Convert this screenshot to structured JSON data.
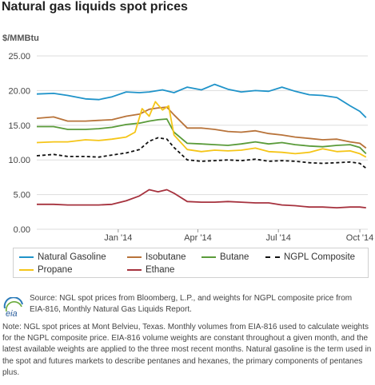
{
  "title": "Natural gas liquids spot prices",
  "unit_label": "$/MMBtu",
  "chart_data": {
    "type": "line",
    "title": "Natural gas liquids spot prices",
    "ylabel": "$/MMBtu",
    "ylim": [
      0,
      25
    ],
    "yticks": [
      "0.00",
      "5.00",
      "10.00",
      "15.00",
      "20.00",
      "25.00"
    ],
    "xlim": [
      "2013-10-01",
      "2014-10-10"
    ],
    "xticks": [
      {
        "date": "2014-01-01",
        "label": "Jan '14"
      },
      {
        "date": "2014-04-01",
        "label": "Apr '14"
      },
      {
        "date": "2014-07-01",
        "label": "Jul '14"
      },
      {
        "date": "2014-10-01",
        "label": "Oct '14"
      }
    ],
    "grid": true,
    "legend_position": "bottom",
    "series": [
      {
        "name": "Natural Gasoline",
        "color": "#1f93c9",
        "dash": false,
        "points": [
          [
            "2013-10-01",
            19.5
          ],
          [
            "2013-10-20",
            19.6
          ],
          [
            "2013-11-05",
            19.3
          ],
          [
            "2013-11-25",
            18.8
          ],
          [
            "2013-12-10",
            18.7
          ],
          [
            "2013-12-25",
            19.1
          ],
          [
            "2014-01-10",
            19.8
          ],
          [
            "2014-01-25",
            19.7
          ],
          [
            "2014-02-05",
            19.8
          ],
          [
            "2014-02-20",
            20.1
          ],
          [
            "2014-03-05",
            19.7
          ],
          [
            "2014-03-20",
            20.5
          ],
          [
            "2014-04-05",
            20.1
          ],
          [
            "2014-04-20",
            20.9
          ],
          [
            "2014-05-05",
            20.2
          ],
          [
            "2014-05-20",
            19.8
          ],
          [
            "2014-06-05",
            20.0
          ],
          [
            "2014-06-20",
            19.9
          ],
          [
            "2014-07-05",
            20.5
          ],
          [
            "2014-07-20",
            19.9
          ],
          [
            "2014-08-05",
            19.4
          ],
          [
            "2014-08-20",
            19.3
          ],
          [
            "2014-09-05",
            19.0
          ],
          [
            "2014-09-20",
            17.8
          ],
          [
            "2014-10-01",
            17.0
          ],
          [
            "2014-10-08",
            16.1
          ]
        ]
      },
      {
        "name": "Isobutane",
        "color": "#b8733a",
        "dash": false,
        "points": [
          [
            "2013-10-01",
            16.0
          ],
          [
            "2013-10-20",
            16.2
          ],
          [
            "2013-11-05",
            15.6
          ],
          [
            "2013-11-25",
            15.6
          ],
          [
            "2013-12-10",
            15.7
          ],
          [
            "2013-12-25",
            15.8
          ],
          [
            "2014-01-10",
            16.3
          ],
          [
            "2014-01-25",
            16.6
          ],
          [
            "2014-02-05",
            17.3
          ],
          [
            "2014-02-15",
            17.5
          ],
          [
            "2014-02-25",
            17.6
          ],
          [
            "2014-03-05",
            16.5
          ],
          [
            "2014-03-20",
            14.6
          ],
          [
            "2014-04-05",
            14.6
          ],
          [
            "2014-04-20",
            14.4
          ],
          [
            "2014-05-05",
            14.1
          ],
          [
            "2014-05-20",
            14.0
          ],
          [
            "2014-06-05",
            14.2
          ],
          [
            "2014-06-20",
            13.8
          ],
          [
            "2014-07-05",
            13.6
          ],
          [
            "2014-07-20",
            13.3
          ],
          [
            "2014-08-05",
            13.1
          ],
          [
            "2014-08-20",
            12.9
          ],
          [
            "2014-09-05",
            13.0
          ],
          [
            "2014-09-20",
            12.6
          ],
          [
            "2014-10-01",
            12.4
          ],
          [
            "2014-10-08",
            11.7
          ]
        ]
      },
      {
        "name": "Butane",
        "color": "#5a9b3a",
        "dash": false,
        "points": [
          [
            "2013-10-01",
            14.8
          ],
          [
            "2013-10-20",
            14.8
          ],
          [
            "2013-11-05",
            14.4
          ],
          [
            "2013-11-25",
            14.4
          ],
          [
            "2013-12-10",
            14.5
          ],
          [
            "2013-12-25",
            14.7
          ],
          [
            "2014-01-10",
            15.1
          ],
          [
            "2014-01-25",
            15.3
          ],
          [
            "2014-02-05",
            15.6
          ],
          [
            "2014-02-15",
            15.8
          ],
          [
            "2014-02-25",
            15.9
          ],
          [
            "2014-03-05",
            14.0
          ],
          [
            "2014-03-20",
            12.4
          ],
          [
            "2014-04-05",
            12.3
          ],
          [
            "2014-04-20",
            12.2
          ],
          [
            "2014-05-05",
            12.1
          ],
          [
            "2014-05-20",
            12.3
          ],
          [
            "2014-06-05",
            12.6
          ],
          [
            "2014-06-20",
            12.3
          ],
          [
            "2014-07-05",
            12.5
          ],
          [
            "2014-07-20",
            12.2
          ],
          [
            "2014-08-05",
            12.0
          ],
          [
            "2014-08-20",
            11.9
          ],
          [
            "2014-09-05",
            12.1
          ],
          [
            "2014-09-20",
            12.2
          ],
          [
            "2014-10-01",
            11.8
          ],
          [
            "2014-10-08",
            10.9
          ]
        ]
      },
      {
        "name": "NGPL Composite",
        "color": "#111111",
        "dash": true,
        "points": [
          [
            "2013-10-01",
            10.6
          ],
          [
            "2013-10-20",
            10.8
          ],
          [
            "2013-11-05",
            10.5
          ],
          [
            "2013-11-25",
            10.5
          ],
          [
            "2013-12-10",
            10.4
          ],
          [
            "2013-12-25",
            10.7
          ],
          [
            "2014-01-10",
            11.0
          ],
          [
            "2014-01-25",
            11.5
          ],
          [
            "2014-02-05",
            12.7
          ],
          [
            "2014-02-15",
            13.2
          ],
          [
            "2014-02-25",
            13.0
          ],
          [
            "2014-03-05",
            11.8
          ],
          [
            "2014-03-20",
            10.0
          ],
          [
            "2014-04-05",
            9.8
          ],
          [
            "2014-04-20",
            9.9
          ],
          [
            "2014-05-05",
            10.0
          ],
          [
            "2014-05-20",
            9.9
          ],
          [
            "2014-06-05",
            10.1
          ],
          [
            "2014-06-20",
            9.8
          ],
          [
            "2014-07-05",
            9.9
          ],
          [
            "2014-07-20",
            9.8
          ],
          [
            "2014-08-05",
            9.6
          ],
          [
            "2014-08-20",
            9.5
          ],
          [
            "2014-09-05",
            9.6
          ],
          [
            "2014-09-20",
            9.7
          ],
          [
            "2014-10-01",
            9.5
          ],
          [
            "2014-10-08",
            8.8
          ]
        ]
      },
      {
        "name": "Propane",
        "color": "#f5c518",
        "dash": false,
        "points": [
          [
            "2013-10-01",
            12.5
          ],
          [
            "2013-10-20",
            12.6
          ],
          [
            "2013-11-05",
            12.6
          ],
          [
            "2013-11-25",
            12.9
          ],
          [
            "2013-12-10",
            12.8
          ],
          [
            "2013-12-25",
            13.0
          ],
          [
            "2014-01-10",
            13.3
          ],
          [
            "2014-01-20",
            14.0
          ],
          [
            "2014-01-28",
            17.4
          ],
          [
            "2014-02-05",
            16.3
          ],
          [
            "2014-02-12",
            18.4
          ],
          [
            "2014-02-20",
            17.2
          ],
          [
            "2014-02-27",
            17.8
          ],
          [
            "2014-03-05",
            13.6
          ],
          [
            "2014-03-20",
            11.5
          ],
          [
            "2014-04-05",
            11.2
          ],
          [
            "2014-04-20",
            11.4
          ],
          [
            "2014-05-05",
            11.3
          ],
          [
            "2014-05-20",
            11.4
          ],
          [
            "2014-06-05",
            11.7
          ],
          [
            "2014-06-20",
            11.2
          ],
          [
            "2014-07-05",
            11.1
          ],
          [
            "2014-07-20",
            10.9
          ],
          [
            "2014-08-05",
            11.1
          ],
          [
            "2014-08-20",
            11.6
          ],
          [
            "2014-09-05",
            11.2
          ],
          [
            "2014-09-20",
            11.3
          ],
          [
            "2014-10-01",
            10.9
          ],
          [
            "2014-10-08",
            10.4
          ]
        ]
      },
      {
        "name": "Ethane",
        "color": "#a6323e",
        "dash": false,
        "points": [
          [
            "2013-10-01",
            3.6
          ],
          [
            "2013-10-20",
            3.6
          ],
          [
            "2013-11-05",
            3.5
          ],
          [
            "2013-11-25",
            3.5
          ],
          [
            "2013-12-10",
            3.5
          ],
          [
            "2013-12-25",
            3.6
          ],
          [
            "2014-01-10",
            4.1
          ],
          [
            "2014-01-25",
            4.8
          ],
          [
            "2014-02-05",
            5.7
          ],
          [
            "2014-02-15",
            5.4
          ],
          [
            "2014-02-25",
            5.7
          ],
          [
            "2014-03-05",
            5.2
          ],
          [
            "2014-03-20",
            4.0
          ],
          [
            "2014-04-05",
            3.9
          ],
          [
            "2014-04-20",
            3.9
          ],
          [
            "2014-05-05",
            4.0
          ],
          [
            "2014-05-20",
            3.9
          ],
          [
            "2014-06-05",
            3.8
          ],
          [
            "2014-06-20",
            3.8
          ],
          [
            "2014-07-05",
            3.5
          ],
          [
            "2014-07-20",
            3.4
          ],
          [
            "2014-08-05",
            3.2
          ],
          [
            "2014-08-20",
            3.2
          ],
          [
            "2014-09-05",
            3.1
          ],
          [
            "2014-09-20",
            3.2
          ],
          [
            "2014-10-01",
            3.2
          ],
          [
            "2014-10-08",
            3.1
          ]
        ]
      }
    ]
  },
  "legend": [
    {
      "label": "Natural Gasoline",
      "color": "#1f93c9",
      "dash": false
    },
    {
      "label": "Isobutane",
      "color": "#b8733a",
      "dash": false
    },
    {
      "label": "Butane",
      "color": "#5a9b3a",
      "dash": false
    },
    {
      "label": "NGPL Composite",
      "color": "#111111",
      "dash": true
    },
    {
      "label": "Propane",
      "color": "#f5c518",
      "dash": false
    },
    {
      "label": "Ethane",
      "color": "#a6323e",
      "dash": false
    }
  ],
  "logo": {
    "icon": "eia-logo-icon",
    "text": "eia"
  },
  "source_text": "Source: NGL spot prices from Bloomberg, L.P., and weights for NGPL composite price from EIA-816, Monthly Natural Gas Liquids Report.",
  "note_text": "Note: NGL spot prices at Mont Belvieu, Texas. Monthly volumes from EIA-816 used to calculate weights for the NGPL composite price. EIA-816 volume weights are constant throughout a given month, and the latest available weights are applied to the three most recent months. Natural gasoline is the term used in the spot and futures markets to describe pentanes and hexanes, the primary components of pentanes plus."
}
